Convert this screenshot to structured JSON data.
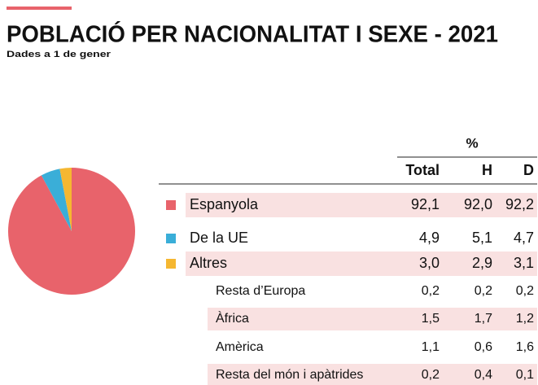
{
  "title": "POBLACIÓ PER NACIONALITAT I SEXE - 2021",
  "subtitle": "Dades a 1 de gener",
  "chart_data": {
    "type": "pie",
    "categories": [
      "Espanyola",
      "De la UE",
      "Altres"
    ],
    "values": [
      92.1,
      4.9,
      3.0
    ],
    "value_labels": [
      "92,1",
      "4,9",
      "3,0"
    ],
    "colors": [
      "#e8636b",
      "#3aaed8",
      "#f5b731"
    ]
  },
  "table": {
    "unit": "%",
    "header": [
      "Total",
      "H",
      "D"
    ],
    "main_rows": [
      [
        "92,0",
        "92,2"
      ],
      [
        "5,1",
        "4,7"
      ],
      [
        "2,9",
        "3,1"
      ]
    ],
    "sub_rows": [
      [
        "Resta d’Europa",
        "0,2",
        "0,2",
        "0,2"
      ],
      [
        "Àfrica",
        "1,5",
        "1,7",
        "1,2"
      ],
      [
        "Amèrica",
        "1,1",
        "0,6",
        "1,6"
      ],
      [
        "Resta del món i apàtrides",
        "0,2",
        "0,4",
        "0,1"
      ]
    ]
  }
}
